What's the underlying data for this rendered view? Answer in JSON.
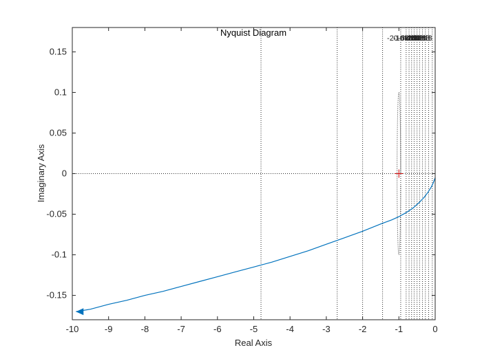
{
  "chart_data": {
    "type": "line",
    "title": "Nyquist Diagram",
    "xlabel": "Real Axis",
    "ylabel": "Imaginary Axis",
    "xlim": [
      -10,
      0
    ],
    "ylim": [
      -0.18,
      0.18
    ],
    "xticks": [
      -10,
      -9,
      -8,
      -7,
      -6,
      -5,
      -4,
      -3,
      -2,
      -1,
      0
    ],
    "yticks": [
      -0.15,
      -0.1,
      -0.05,
      0,
      0.05,
      0.1,
      0.15
    ],
    "grid": "nyquist constant-magnitude grid",
    "colors": {
      "curve": "#0072bd",
      "grid": "#262626",
      "critical_point": "#cc0000",
      "axes": "#262626"
    },
    "series": [
      {
        "x": [
          -9.9,
          -9.5,
          -9.0,
          -8.5,
          -8.0,
          -7.5,
          -7.0,
          -6.5,
          -6.0,
          -5.5,
          -5.0,
          -4.5,
          -4.0,
          -3.5,
          -3.0,
          -2.5,
          -2.0,
          -1.5,
          -1.2,
          -1.0,
          -0.8,
          -0.6,
          -0.45,
          -0.3,
          -0.2,
          -0.1,
          -0.05,
          0.0
        ],
        "y": [
          -0.17,
          -0.167,
          -0.161,
          -0.156,
          -0.15,
          -0.145,
          -0.139,
          -0.133,
          -0.127,
          -0.121,
          -0.115,
          -0.109,
          -0.102,
          -0.095,
          -0.087,
          -0.079,
          -0.071,
          -0.062,
          -0.057,
          -0.053,
          -0.048,
          -0.042,
          -0.036,
          -0.029,
          -0.023,
          -0.016,
          -0.011,
          -0.005
        ]
      }
    ],
    "critical_point": {
      "x": -1,
      "y": 0,
      "marker": "+"
    },
    "grid_lines_x": [
      -4.8,
      -2.7,
      -2.0,
      -1.45,
      -0.95,
      -0.8,
      -0.72,
      -0.65,
      -0.58,
      -0.5,
      -0.43,
      -0.35,
      -0.27,
      -0.18,
      -0.08
    ],
    "grid_labels": [
      "-20 dB",
      "-10 dB",
      "-6 dB",
      "-4 dB",
      "-2 dB",
      "0 dB",
      "2 dB",
      "4 dB",
      "6 dB",
      "10 dB",
      "20 dB"
    ]
  }
}
